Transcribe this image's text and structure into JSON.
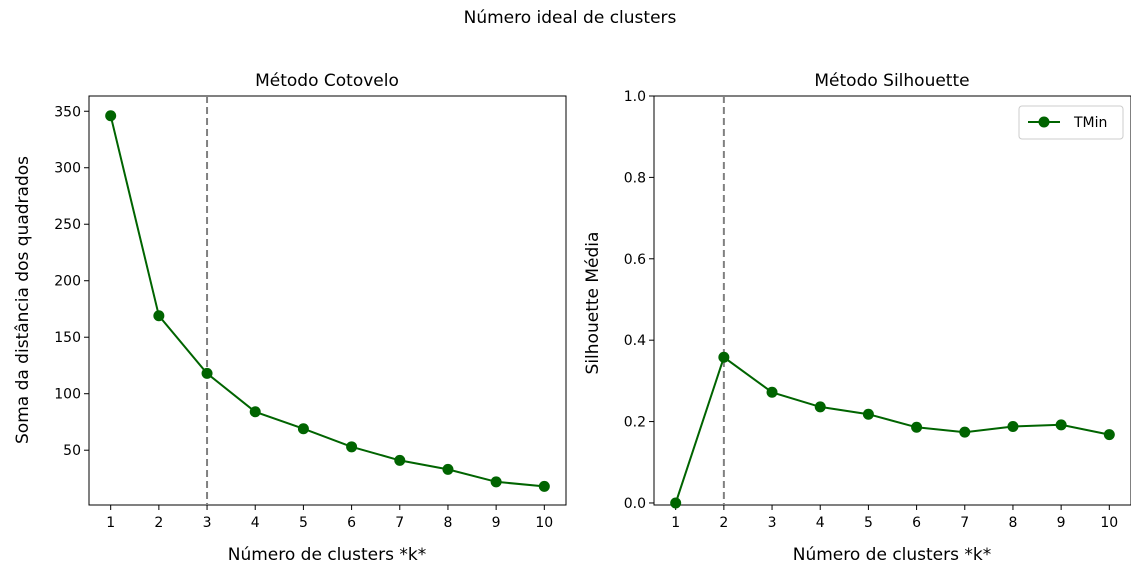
{
  "figure": {
    "suptitle": "Número ideal de clusters"
  },
  "chart_data": [
    {
      "type": "line",
      "title": "Método Cotovelo",
      "xlabel": "Número de clusters *k*",
      "ylabel": "Soma da distância dos quadrados",
      "x": [
        1,
        2,
        3,
        4,
        5,
        6,
        7,
        8,
        9,
        10
      ],
      "xticks": [
        "1",
        "2",
        "3",
        "4",
        "5",
        "6",
        "7",
        "8",
        "9",
        "10"
      ],
      "yticks": [
        "50",
        "100",
        "150",
        "200",
        "250",
        "300",
        "350"
      ],
      "ytick_values": [
        50,
        100,
        150,
        200,
        250,
        300,
        350
      ],
      "xlim": [
        0.55,
        10.45
      ],
      "ylim": [
        1.5,
        363.5
      ],
      "series": [
        {
          "values": [
            346,
            169,
            118,
            84,
            69,
            53,
            41,
            33,
            22,
            18
          ],
          "color": "#006400",
          "marker": "circle"
        }
      ],
      "vline": {
        "x": 3,
        "color": "#808080",
        "style": "dashed"
      },
      "grid": false,
      "legend": null
    },
    {
      "type": "line",
      "title": "Método Silhouette",
      "xlabel": "Número de clusters *k*",
      "ylabel": "Silhouette Média",
      "x": [
        1,
        2,
        3,
        4,
        5,
        6,
        7,
        8,
        9,
        10
      ],
      "xticks": [
        "1",
        "2",
        "3",
        "4",
        "5",
        "6",
        "7",
        "8",
        "9",
        "10"
      ],
      "yticks": [
        "0.0",
        "0.2",
        "0.4",
        "0.6",
        "0.8",
        "1.0"
      ],
      "ytick_values": [
        0.0,
        0.2,
        0.4,
        0.6,
        0.8,
        1.0
      ],
      "xlim": [
        0.55,
        10.45
      ],
      "ylim": [
        -0.005,
        1.0
      ],
      "series": [
        {
          "name": "TMin",
          "values": [
            0.0,
            0.358,
            0.272,
            0.236,
            0.218,
            0.186,
            0.174,
            0.188,
            0.192,
            0.168
          ],
          "color": "#006400",
          "marker": "circle"
        }
      ],
      "vline": {
        "x": 2,
        "color": "#808080",
        "style": "dashed"
      },
      "grid": false,
      "legend": "upper right"
    }
  ]
}
